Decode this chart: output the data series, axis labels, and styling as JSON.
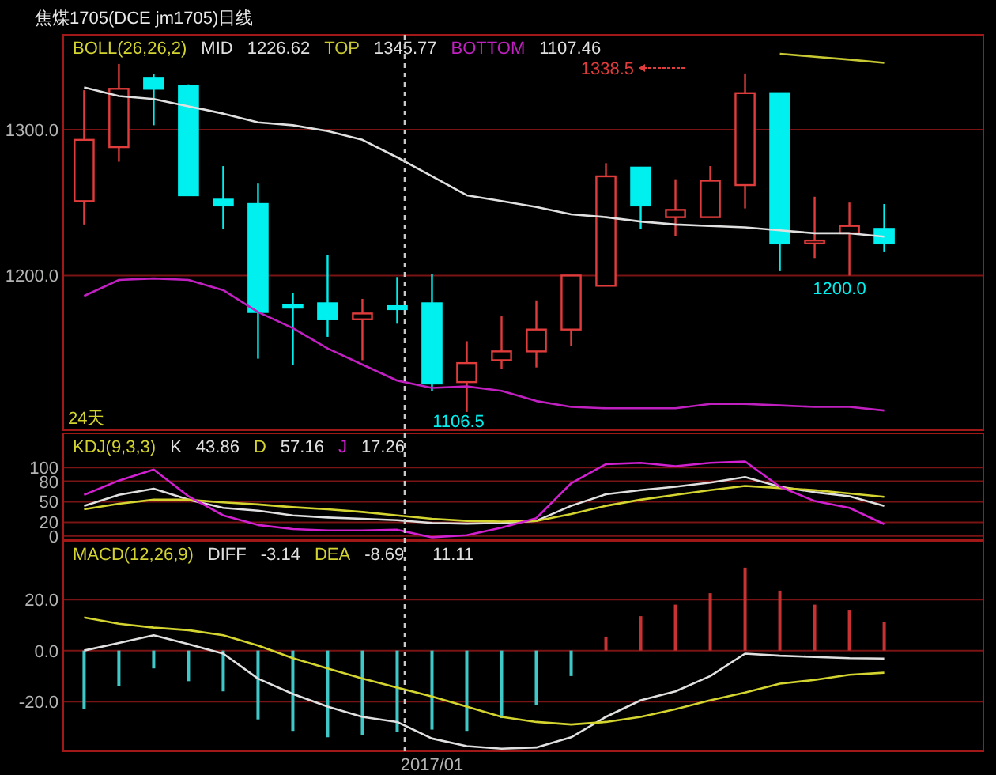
{
  "chart_data": [
    {
      "type": "candlestick",
      "title": "焦煤1705(DCE jm1705)日线",
      "legend_title": "BOLL(26,26,2)",
      "legend": "top left",
      "grid": "y",
      "tick_labels": "y",
      "categories": [
        null,
        null,
        null,
        null,
        null,
        null,
        null,
        null,
        null,
        null,
        null,
        null,
        null,
        null,
        null,
        null,
        null,
        null,
        null,
        null,
        null,
        null,
        null,
        null
      ],
      "ohlc": [
        [
          1251,
          1327,
          1235,
          1293
        ],
        [
          1288,
          1345,
          1278,
          1328
        ],
        [
          1335,
          1338,
          1303,
          1328
        ],
        [
          1330,
          1331,
          1255,
          1255
        ],
        [
          1252,
          1275,
          1232,
          1248
        ],
        [
          1249,
          1263,
          1143,
          1175
        ],
        [
          1180,
          1188,
          1139,
          1178
        ],
        [
          1181,
          1214,
          1158,
          1170
        ],
        [
          1170,
          1184,
          1142,
          1174
        ],
        [
          1179,
          1199,
          1167,
          1177
        ],
        [
          1181,
          1201,
          1121,
          1126
        ],
        [
          1127,
          1155,
          1106.5,
          1140
        ],
        [
          1142,
          1172,
          1136,
          1148
        ],
        [
          1148,
          1183,
          1137,
          1163
        ],
        [
          1163,
          1200,
          1152,
          1200
        ],
        [
          1193,
          1277,
          1193,
          1268
        ],
        [
          1274,
          1274,
          1232,
          1248
        ],
        [
          1240,
          1266,
          1227,
          1245
        ],
        [
          1240,
          1275,
          1240,
          1265
        ],
        [
          1262,
          1338.5,
          1246,
          1325
        ],
        [
          1325,
          1325,
          1203,
          1222
        ],
        [
          1222,
          1254,
          1212,
          1224
        ],
        [
          1229,
          1250,
          1200,
          1234
        ],
        [
          1232,
          1249,
          1216,
          1222
        ]
      ],
      "colors": [
        "#e03c3c",
        "#e03c3c",
        "#00f0f0",
        "#00f0f0",
        "#00f0f0",
        "#00f0f0",
        "#00f0f0",
        "#00f0f0",
        "#e03c3c",
        "#00f0f0",
        "#00f0f0",
        "#e03c3c",
        "#e03c3c",
        "#e03c3c",
        "#e03c3c",
        "#e03c3c",
        "#00f0f0",
        "#e03c3c",
        "#e03c3c",
        "#e03c3c",
        "#00f0f0",
        "#e03c3c",
        "#e03c3c",
        "#00f0f0"
      ],
      "series": [
        {
          "name": "MID",
          "type": "line",
          "color": "#e0e0e0",
          "values": [
            1329,
            1323,
            1321,
            1316,
            1311,
            1305,
            1303,
            1299,
            1293,
            1281,
            1268,
            1255,
            1251,
            1247,
            1242,
            1240,
            1237,
            1235,
            1234,
            1233,
            1231,
            1229,
            1229,
            1226.62
          ]
        },
        {
          "name": "TOP",
          "type": "line",
          "color": "#c8c832",
          "values": [
            null,
            null,
            null,
            null,
            null,
            null,
            null,
            null,
            null,
            null,
            null,
            null,
            null,
            null,
            null,
            null,
            null,
            null,
            null,
            null,
            1352,
            1350,
            1348,
            1345.77
          ]
        },
        {
          "name": "BOTTOM",
          "type": "line",
          "color": "#c020c0",
          "values": [
            1186,
            1197,
            1198,
            1197,
            1190,
            1175,
            1164,
            1150,
            1139,
            1128,
            1123,
            1124,
            1121,
            1114,
            1110,
            1109,
            1109,
            1109,
            1112,
            1112,
            1111,
            1110,
            1110,
            1107.46
          ]
        }
      ],
      "ylim": [
        1094,
        1365
      ],
      "yticks": [
        {
          "value": 1200,
          "label": "1200.0"
        },
        {
          "value": 1300,
          "label": "1300.0"
        }
      ],
      "annotations": [
        "1226.62",
        "1345.77",
        "1107.46",
        "24天",
        "1338.5",
        "1106.5",
        "1200.0"
      ]
    },
    {
      "type": "line",
      "legend_title": "KDJ(9,3,3)",
      "legend": "top left",
      "grid": "y",
      "tick_labels": "y",
      "categories": [
        null,
        null,
        null,
        null,
        null,
        null,
        null,
        null,
        null,
        null,
        null,
        null,
        null,
        null,
        null,
        null,
        null,
        null,
        null,
        null,
        null,
        null,
        null,
        null
      ],
      "series": [
        {
          "name": "K",
          "color": "#e0e0e0",
          "values": [
            44,
            60,
            69,
            53,
            41,
            37,
            30,
            27,
            25,
            23,
            19,
            18,
            19,
            22,
            44,
            61,
            67,
            72,
            78,
            86,
            72,
            64,
            58,
            43.86
          ]
        },
        {
          "name": "D",
          "color": "#d4d430",
          "values": [
            39,
            47,
            53,
            53,
            49,
            46,
            42,
            39,
            35,
            30,
            25,
            22,
            21,
            22,
            32,
            44,
            53,
            60,
            67,
            73,
            70,
            67,
            62,
            57.16
          ]
        },
        {
          "name": "J",
          "color": "#d020d0",
          "values": [
            60,
            81,
            97,
            58,
            30,
            16,
            10,
            8,
            8,
            9,
            -2,
            1,
            12,
            26,
            77,
            105,
            107,
            102,
            107,
            109,
            72,
            51,
            41,
            17.26
          ]
        }
      ],
      "ylim": [
        -5,
        150
      ],
      "yticks": [
        0,
        20,
        50,
        80,
        100
      ],
      "annotations": [
        "43.86",
        "57.16",
        "17.26"
      ]
    },
    {
      "type": "bar",
      "legend_title": "MACD(12,26,9)",
      "legend": "top left",
      "grid": "y",
      "categories": [
        null,
        null,
        null,
        null,
        null,
        null,
        null,
        null,
        null,
        null,
        "2017/01",
        null,
        null,
        null,
        null,
        null,
        null,
        null,
        null,
        null,
        null,
        null,
        null,
        null
      ],
      "series": [
        {
          "name": "DIFF",
          "type": "line",
          "color": "#e0e0e0",
          "values": [
            0,
            3,
            6,
            2.5,
            -1.2,
            -11,
            -17,
            -22,
            -26,
            -28,
            -34.5,
            -37.5,
            -38.5,
            -38,
            -34,
            -26,
            -19.5,
            -16,
            -10,
            -1.2,
            -2,
            -2.5,
            -3,
            -3.14
          ]
        },
        {
          "name": "DEA",
          "type": "line",
          "color": "#d4d430",
          "values": [
            13,
            10.5,
            9,
            8,
            6,
            2,
            -3,
            -7,
            -11,
            -14.5,
            -18,
            -22,
            -26,
            -28,
            -29,
            -28,
            -26,
            -23,
            -19.5,
            -16.5,
            -13,
            -11.5,
            -9.5,
            -8.69
          ]
        },
        {
          "type": "bar",
          "colors": [
            "#40c8c8",
            "#40c8c8",
            "#40c8c8",
            "#40c8c8",
            "#40c8c8",
            "#40c8c8",
            "#40c8c8",
            "#40c8c8",
            "#40c8c8",
            "#40c8c8",
            "#40c8c8",
            "#40c8c8",
            "#40c8c8",
            "#40c8c8",
            "#40c8c8",
            "#c83232",
            "#c83232",
            "#c83232",
            "#c83232",
            "#c83232",
            "#c83232",
            "#c83232",
            "#c83232",
            "#c83232"
          ],
          "values": [
            -23,
            -14,
            -7,
            -12,
            -16,
            -27,
            -31.5,
            -34,
            -33,
            -32,
            -31,
            -31.5,
            -26.5,
            -21.5,
            -10,
            5.5,
            13.5,
            18,
            22.5,
            32.5,
            23.5,
            18,
            16,
            11.11
          ]
        }
      ],
      "ylim": [
        -39.5,
        43
      ],
      "yticks": [
        {
          "value": -20,
          "label": "-20.0"
        },
        {
          "value": 0,
          "label": "0.0"
        },
        {
          "value": 20,
          "label": "20.0"
        }
      ],
      "annotations": [
        "-3.14",
        "-8.69",
        "11.11"
      ]
    }
  ]
}
